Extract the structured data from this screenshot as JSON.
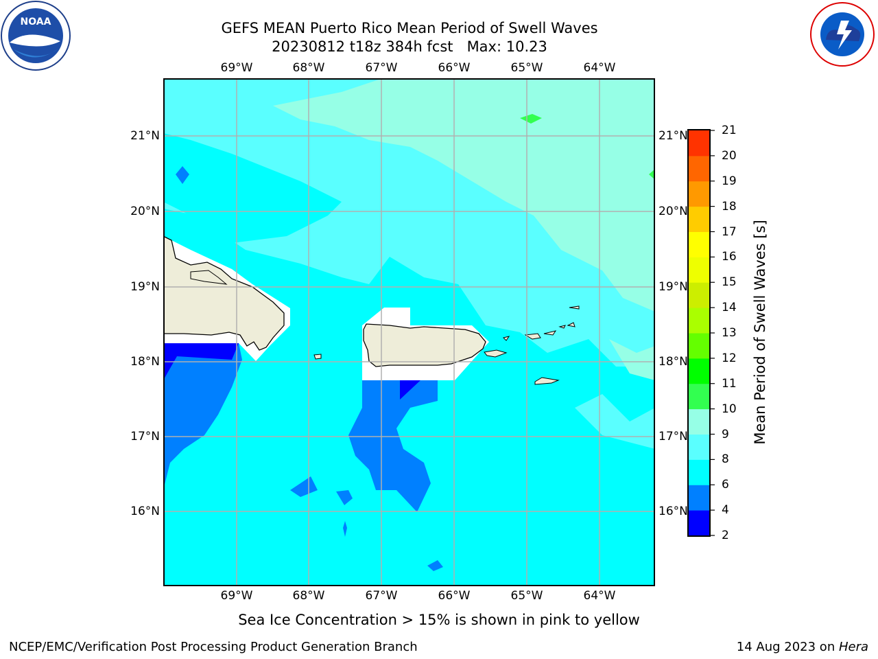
{
  "title": {
    "line1": "GEFS MEAN Puerto Rico Mean Period of Swell Waves",
    "line2": "20230812 t18z 384h fcst   Max: 10.23"
  },
  "map": {
    "lon_ticks": [
      "69°W",
      "68°W",
      "67°W",
      "66°W",
      "65°W",
      "64°W"
    ],
    "lat_ticks": [
      "21°N",
      "20°N",
      "19°N",
      "18°N",
      "17°N",
      "16°N"
    ],
    "colors": {
      "land": "#eeedd9",
      "ocean_6_8": "#00ffff",
      "ocean_8_9": "#5affff",
      "ocean_9_10": "#96ffe6",
      "ocean_4_6": "#0080ff",
      "ocean_2_4": "#0000ff",
      "mask": "#ffffff",
      "grid": "#b0b0b0"
    }
  },
  "colorbar": {
    "label": "Mean Period of Swell Waves [s]",
    "ticks": [
      "2",
      "4",
      "6",
      "8",
      "9",
      "10",
      "11",
      "12",
      "13",
      "14",
      "15",
      "16",
      "17",
      "18",
      "19",
      "20",
      "21"
    ],
    "colors": [
      "#0000ff",
      "#0080ff",
      "#00ffff",
      "#5affff",
      "#96ffe6",
      "#32ff50",
      "#00ff00",
      "#64ff00",
      "#aaff00",
      "#ccee00",
      "#eeff00",
      "#ffff00",
      "#ffcc00",
      "#ff9900",
      "#ff6600",
      "#ff3300",
      "#ff0000"
    ]
  },
  "note": "Sea Ice Concentration > 15% is shown in pink to yellow",
  "footer": {
    "left": "NCEP/EMC/Verification Post Processing Product Generation Branch",
    "right_prefix": "14 Aug 2023 on ",
    "right_machine": "Hera"
  },
  "logos": {
    "noaa": "NOAA",
    "nws": "NATIONAL WEATHER SERVICE"
  }
}
